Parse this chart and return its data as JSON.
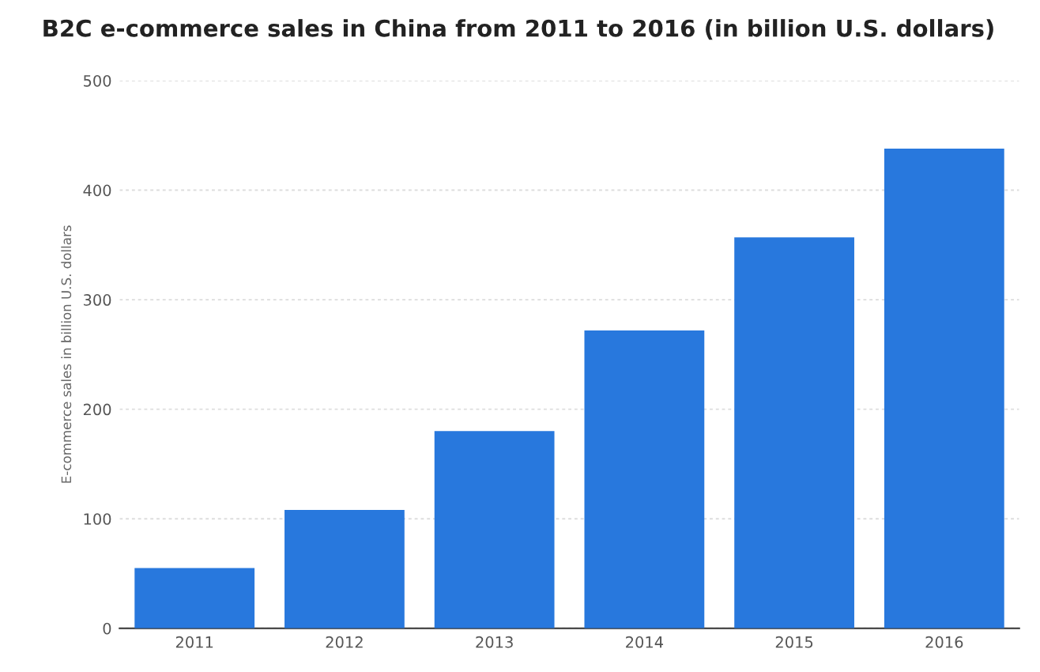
{
  "chart_data": {
    "type": "bar",
    "title": "B2C e-commerce sales in China from 2011 to 2016 (in billion U.S. dollars)",
    "ylabel": "E-commerce sales in billion U.S. dollars",
    "categories": [
      "2011",
      "2012",
      "2013",
      "2014",
      "2015",
      "2016"
    ],
    "values": [
      55,
      108,
      180,
      272,
      357,
      438
    ],
    "color": "#2878dd",
    "ylim": [
      0,
      500
    ],
    "yticks": [
      0,
      100,
      200,
      300,
      400,
      500
    ],
    "grid": "y"
  }
}
